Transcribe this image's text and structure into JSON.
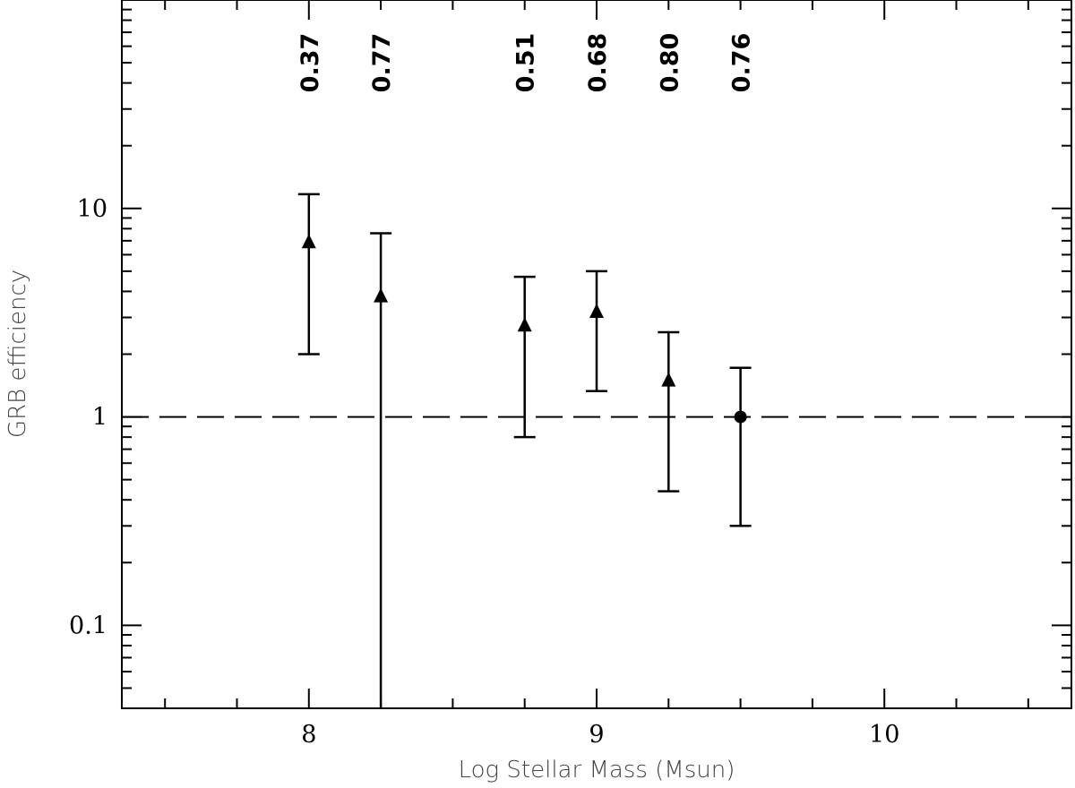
{
  "chart_data": {
    "type": "scatter",
    "title": "",
    "xlabel": "Log Stellar Mass (Msun)",
    "ylabel": "GRB efficiency",
    "xlim": [
      7.35,
      10.65
    ],
    "ylim": [
      0.04,
      100
    ],
    "y_scale": "log",
    "grid": false,
    "legend": "none",
    "x_ticks": [
      8,
      9,
      10
    ],
    "x_tick_labels": [
      "8",
      "9",
      "10"
    ],
    "y_ticks": [
      0.1,
      1,
      10
    ],
    "y_tick_labels": [
      "0.1",
      "1",
      "10"
    ],
    "reference_line": {
      "y": 1,
      "style": "dashed"
    },
    "points": [
      {
        "x": 8.0,
        "y": 6.9,
        "y_low": 2.0,
        "y_high": 11.7,
        "marker": "triangle",
        "label": "0.37"
      },
      {
        "x": 8.25,
        "y": 3.8,
        "y_low": 0.04,
        "y_high": 7.6,
        "marker": "triangle",
        "label": "0.77"
      },
      {
        "x": 8.75,
        "y": 2.75,
        "y_low": 0.8,
        "y_high": 4.7,
        "marker": "triangle",
        "label": "0.51"
      },
      {
        "x": 9.0,
        "y": 3.2,
        "y_low": 1.33,
        "y_high": 5.0,
        "marker": "triangle",
        "label": "0.68"
      },
      {
        "x": 9.25,
        "y": 1.5,
        "y_low": 0.44,
        "y_high": 2.55,
        "marker": "triangle",
        "label": "0.80"
      },
      {
        "x": 9.5,
        "y": 1.0,
        "y_low": 0.3,
        "y_high": 1.72,
        "marker": "circle",
        "label": "0.76"
      }
    ]
  }
}
